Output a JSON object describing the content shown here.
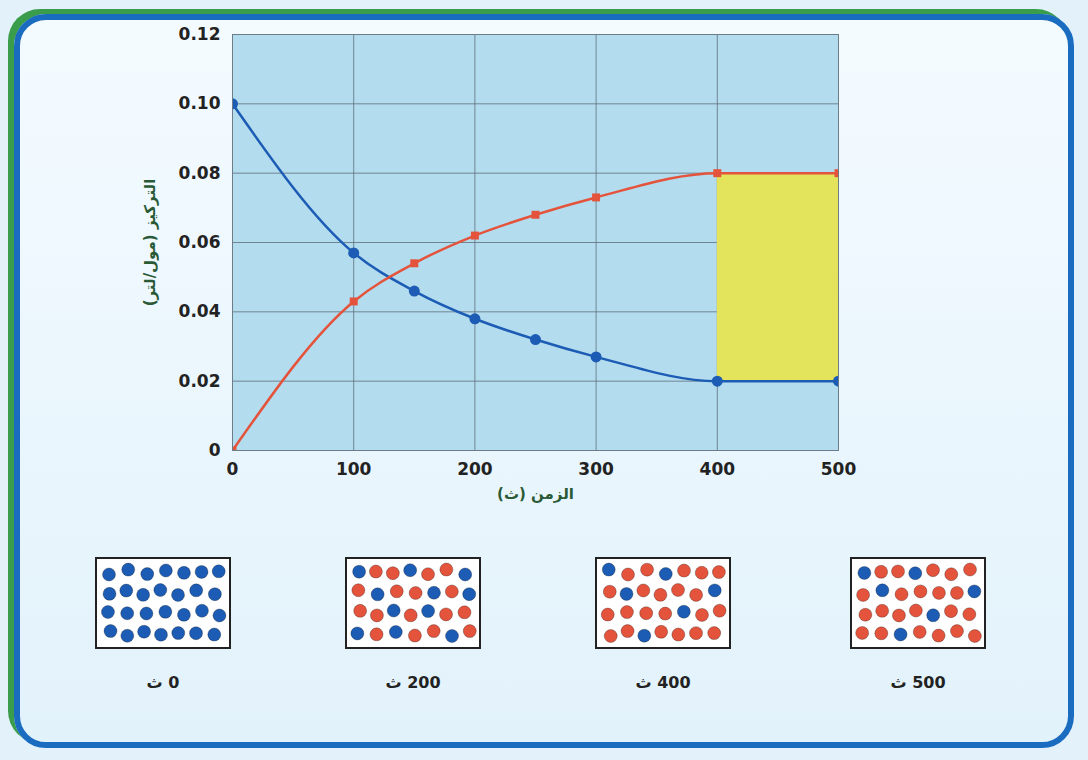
{
  "chart_data": {
    "type": "line",
    "x_label": "الزمن (ث)",
    "y_label": "التركيز (مول/لتر)",
    "x": [
      0,
      100,
      150,
      200,
      250,
      300,
      400,
      500
    ],
    "series": [
      {
        "color": "#1c5cb4",
        "marker": "circle",
        "values": [
          0.1,
          0.057,
          0.046,
          0.038,
          0.032,
          0.027,
          0.02,
          0.02
        ]
      },
      {
        "color": "#e4533b",
        "marker": "square",
        "values": [
          0,
          0.043,
          0.054,
          0.062,
          0.068,
          0.073,
          0.08,
          0.08
        ]
      }
    ],
    "xlim": [
      0,
      500
    ],
    "ylim": [
      0,
      0.12
    ],
    "xticks": [
      0,
      100,
      200,
      300,
      400,
      500
    ],
    "yticks": [
      0,
      0.02,
      0.04,
      0.06,
      0.08,
      {
        "value": 0.1,
        "label": "0.10"
      },
      0.12
    ],
    "grid": true,
    "highlight": {
      "x": [
        400,
        500
      ],
      "y": [
        0.02,
        0.08
      ],
      "color": "#e3e45c"
    },
    "snapshots": [
      {
        "time": 0,
        "label": "0 ث"
      },
      {
        "time": 200,
        "label": "200 ث"
      },
      {
        "time": 400,
        "label": "400 ث"
      },
      {
        "time": 500,
        "label": "500 ث"
      }
    ]
  }
}
